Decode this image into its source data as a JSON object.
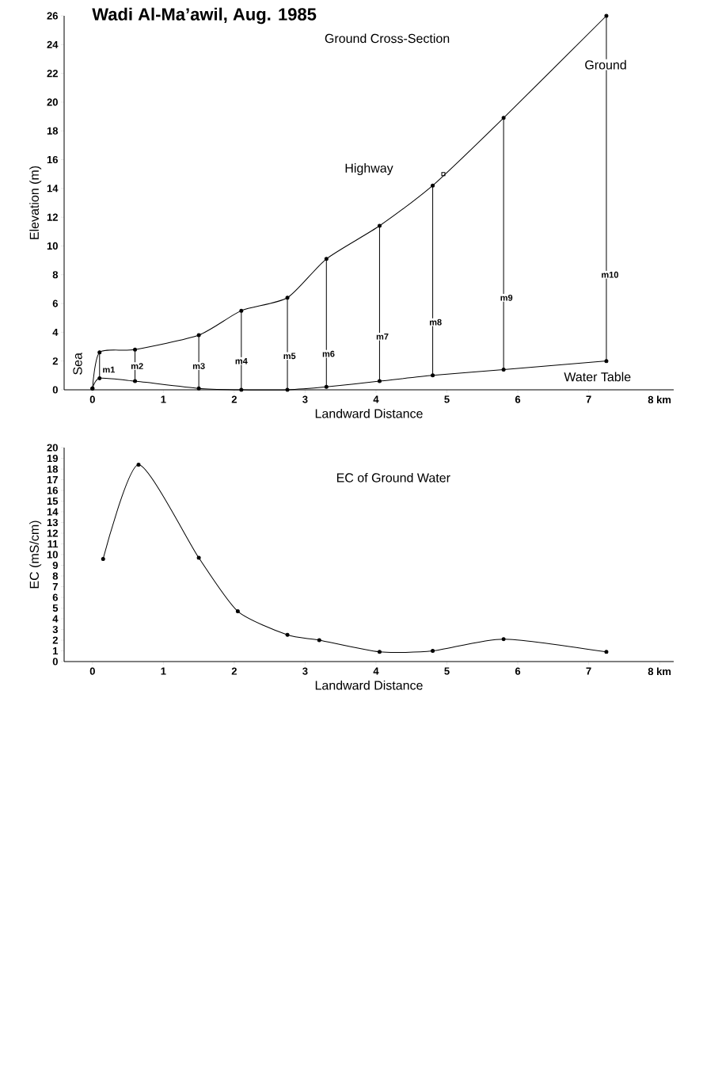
{
  "chart_data": [
    {
      "type": "line",
      "title": "Wadi Al-Ma’awil, Aug. 1985",
      "subtitle": "Ground Cross-Section",
      "xlabel": "Landward Distance",
      "ylabel": "Elevation (m)",
      "xlim": [
        -0.4,
        8.2
      ],
      "ylim": [
        0,
        26
      ],
      "xticks": [
        0,
        1,
        2,
        3,
        4,
        5,
        6,
        7,
        {
          "value": 8,
          "label": "8 km"
        }
      ],
      "yticks": [
        0,
        2,
        4,
        6,
        8,
        10,
        12,
        14,
        16,
        18,
        20,
        22,
        24,
        26
      ],
      "marker": "circle",
      "grid": false,
      "series": [
        {
          "color": "#000000",
          "x": [
            0,
            0.1,
            0.6,
            1.5,
            2.1,
            2.75,
            3.3,
            4.05,
            4.8,
            5.8,
            7.25
          ],
          "values": [
            0.1,
            2.6,
            2.8,
            3.8,
            5.5,
            6.4,
            9.1,
            11.4,
            14.2,
            18.9,
            26
          ]
        },
        {
          "color": "#000000",
          "x": [
            0,
            0.1,
            0.6,
            1.5,
            2.1,
            2.75,
            3.3,
            4.05,
            4.8,
            5.8,
            7.25
          ],
          "values": [
            0.1,
            0.8,
            0.6,
            0.1,
            0,
            0,
            0.2,
            0.6,
            1.0,
            1.4,
            2.0
          ],
          "errors": [
            null,
            [
              0.8,
              2.6
            ],
            [
              0.6,
              2.8
            ],
            [
              0.1,
              3.8
            ],
            [
              0,
              5.5
            ],
            [
              0,
              6.4
            ],
            [
              0.2,
              9.1
            ],
            [
              0.6,
              11.4
            ],
            [
              1.0,
              14.2
            ],
            [
              1.4,
              18.9
            ],
            [
              2.0,
              26
            ]
          ]
        },
        {
          "type": "scatter",
          "color": "#000000",
          "marker": "square",
          "x": [
            4.95
          ],
          "values": [
            15.0
          ]
        }
      ],
      "annotations": [
        "Highway",
        {
          "text": "Ground",
          "x": 7.24,
          "y": 22.6
        },
        "Water Table",
        {
          "text": "Sea",
          "x": -0.21,
          "y": 1.8
        },
        {
          "text": "m1",
          "x": 0.23,
          "y": 1.4
        },
        {
          "text": "m2",
          "x": 0.63,
          "y": 1.65
        },
        {
          "text": "m3",
          "x": 1.5,
          "y": 1.65
        },
        {
          "text": "m4",
          "x": 2.1,
          "y": 2.0
        },
        {
          "text": "m5",
          "x": 2.78,
          "y": 2.35
        },
        {
          "text": "m6",
          "x": 3.33,
          "y": 2.5
        },
        {
          "text": "m7",
          "x": 4.09,
          "y": 3.7
        },
        {
          "text": "m8",
          "x": 4.84,
          "y": 4.7
        },
        {
          "text": "m9",
          "x": 5.84,
          "y": 6.4
        },
        {
          "text": "m10",
          "x": 7.3,
          "y": 8.0
        }
      ]
    },
    {
      "type": "line",
      "subtitle": "EC of Ground Water",
      "xlabel": "Landward Distance",
      "ylabel": "EC (mS/cm)",
      "xlim": [
        -0.4,
        8.2
      ],
      "ylim": [
        0,
        20
      ],
      "xticks": [
        0,
        1,
        2,
        3,
        4,
        5,
        6,
        7,
        {
          "value": 8,
          "label": "8 km"
        }
      ],
      "yticks": [
        0,
        1,
        2,
        3,
        4,
        5,
        6,
        7,
        8,
        9,
        10,
        11,
        12,
        13,
        14,
        15,
        16,
        17,
        18,
        19,
        20
      ],
      "marker": "circle",
      "grid": false,
      "series": [
        {
          "color": "#000000",
          "x": [
            0.15,
            0.65,
            1.5,
            2.05,
            2.75,
            3.2,
            4.05,
            4.8,
            5.8,
            7.25
          ],
          "values": [
            9.6,
            18.4,
            9.7,
            4.7,
            2.5,
            2.0,
            0.9,
            1.0,
            2.1,
            0.9
          ]
        }
      ]
    }
  ]
}
